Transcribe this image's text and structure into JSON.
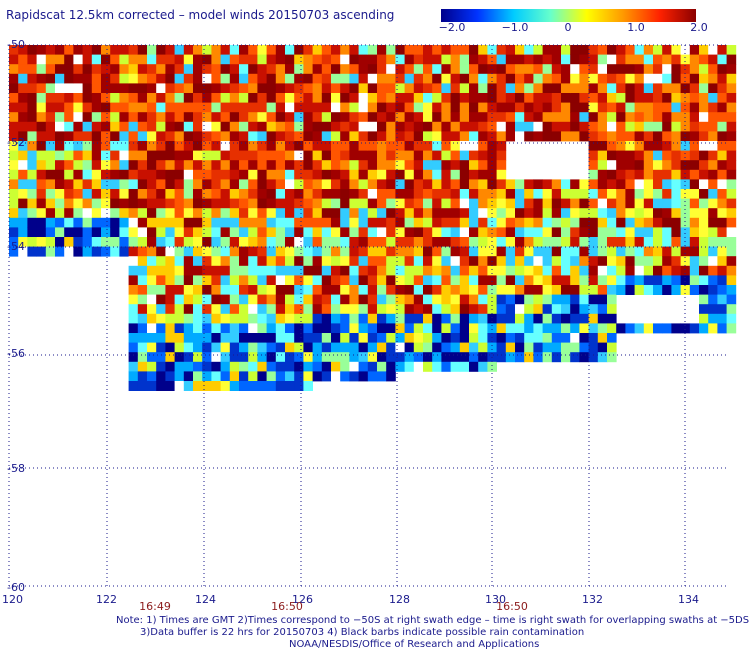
{
  "title": "Rapidscat 12.5km corrected – model winds 20150703 ascending",
  "colorbar": {
    "labels": [
      "−2.0",
      "−1.0",
      "0",
      "1.0",
      "2.0"
    ],
    "stops": [
      "#00008b",
      "#0033ff",
      "#00ccff",
      "#66ffcc",
      "#ffff00",
      "#ff9900",
      "#ff2200",
      "#8b0000"
    ]
  },
  "map": {
    "lon_labels": [
      "120",
      "122",
      "124",
      "126",
      "128",
      "130",
      "132",
      "134"
    ],
    "lat_labels": [
      "-50",
      "-52",
      "-54",
      "-56",
      "-58",
      "-60"
    ],
    "times": [
      "16:49",
      "16:50",
      "16:50"
    ],
    "grid_color": "#1a1a8c"
  },
  "notes": {
    "line1": "Note: 1) Times are GMT 2)Times correspond to −50S at right swath edge – time is right swath for overlapping swaths at −5DS",
    "line2": "3)Data buffer is 22 hrs for 20150703 4) Black barbs indicate possible rain contamination",
    "line3": "NOAA/NESDIS/Office of Research and Applications"
  }
}
